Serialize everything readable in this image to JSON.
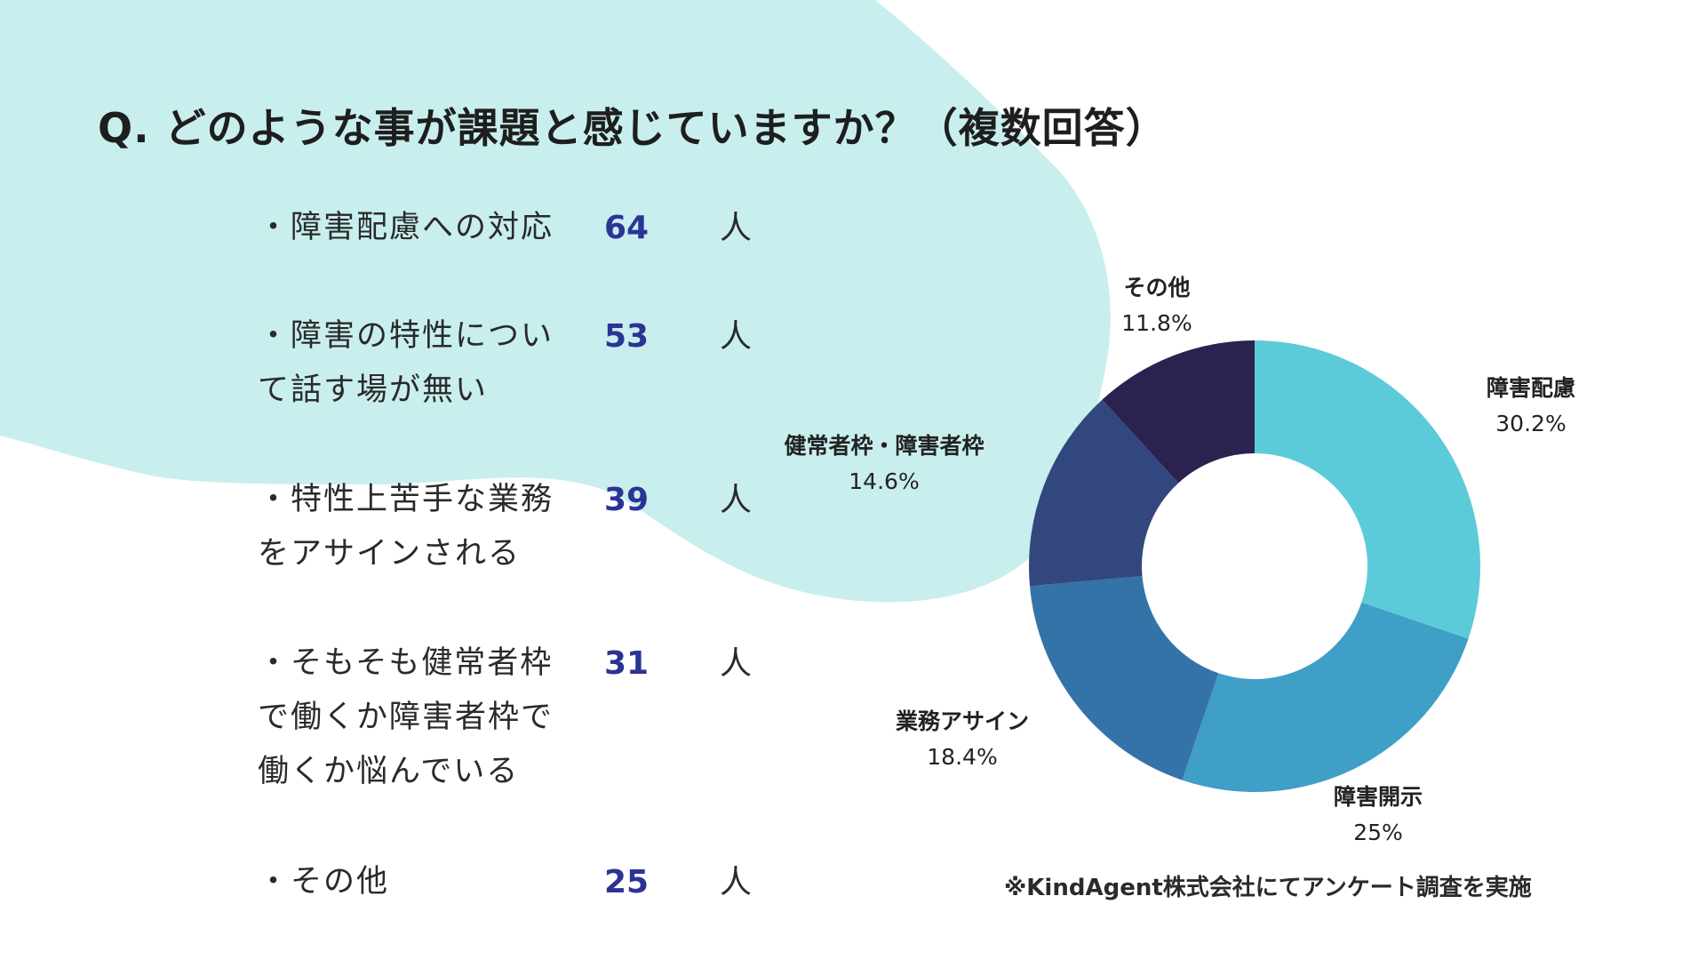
{
  "title": "Q. どのような事が課題と感じていますか？（複数回答）",
  "items": [
    {
      "label": "・障害配慮への対応",
      "count": "64",
      "unit": "人"
    },
    {
      "label": "・障害の特性について話す場が無い",
      "count": "53",
      "unit": "人"
    },
    {
      "label": "・特性上苦手な業務をアサインされる",
      "count": "39",
      "unit": "人"
    },
    {
      "label": "・そもそも健常者枠で働くか障害者枠で働くか悩んでいる",
      "count": "31",
      "unit": "人"
    },
    {
      "label": "・その他",
      "count": "25",
      "unit": "人"
    }
  ],
  "colors": {
    "blob": "#c9eeee",
    "count_text": "#2b3494"
  },
  "chart_data": {
    "type": "pie",
    "donut": true,
    "title": "",
    "slices": [
      {
        "name": "障害配慮",
        "value": 30.2,
        "label": "30.2%",
        "color": "#5ccbd9"
      },
      {
        "name": "障害開示",
        "value": 25,
        "label": "25%",
        "color": "#3f9fc6"
      },
      {
        "name": "業務アサイン",
        "value": 18.4,
        "label": "18.4%",
        "color": "#3473a8"
      },
      {
        "name": "健常者枠・障害者枠",
        "value": 14.6,
        "label": "14.6%",
        "color": "#33477f"
      },
      {
        "name": "その他",
        "value": 11.8,
        "label": "11.8%",
        "color": "#2c2250"
      }
    ]
  },
  "footnote": "※KindAgent株式会社にてアンケート調査を実施"
}
